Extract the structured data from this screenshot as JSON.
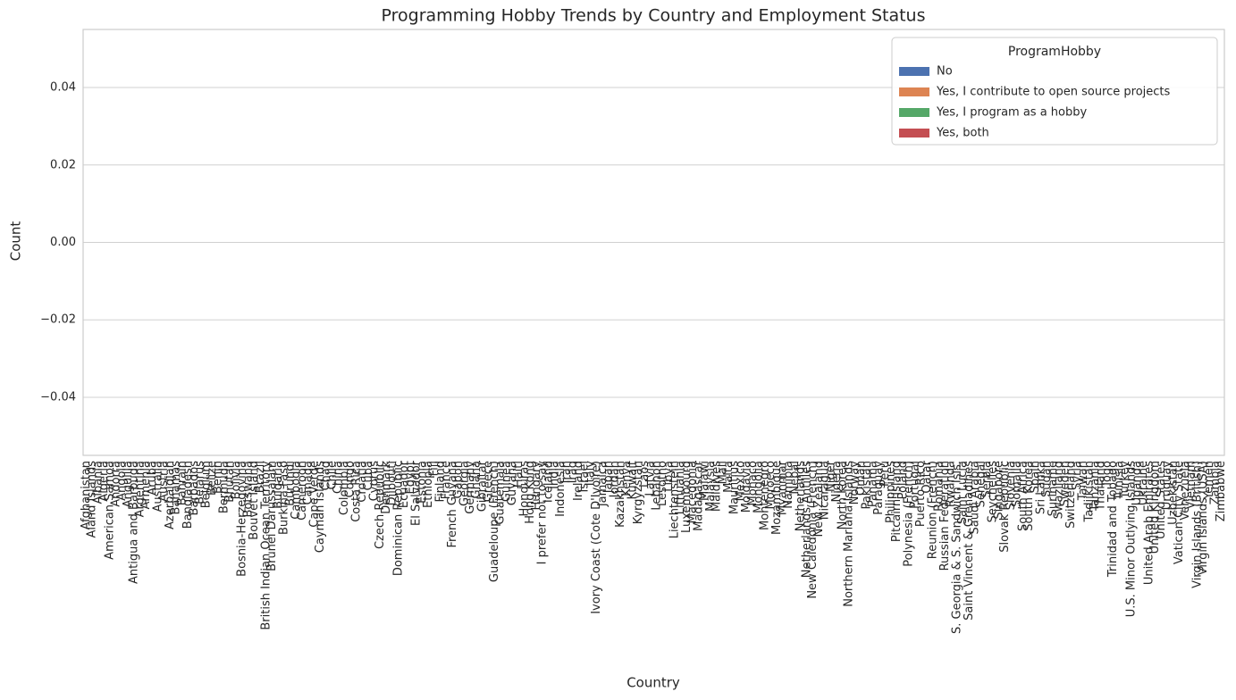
{
  "chart_data": {
    "type": "bar",
    "title": "Programming Hobby Trends by Country and Employment Status",
    "xlabel": "Country",
    "ylabel": "Count",
    "categories": [
      "Afghanistan",
      "Aland Islands",
      "Albania",
      "Algeria",
      "American Samoa",
      "Andorra",
      "Angola",
      "Anguilla",
      "Antigua and Barbuda",
      "Argentina",
      "Armenia",
      "Aruba",
      "Australia",
      "Austria",
      "Azerbaidjan",
      "Bahamas",
      "Bahrain",
      "Bangladesh",
      "Barbados",
      "Belarus",
      "Belgium",
      "Belize",
      "Benin",
      "Bermuda",
      "Bhutan",
      "Bolivia",
      "Bosnia-Herzegovina",
      "Botswana",
      "Bouvet Island",
      "Brazil",
      "British Indian Ocean Territory",
      "Brunei Darussalam",
      "Bulgaria",
      "Burkina Faso",
      "Burundi",
      "Cambodia",
      "Cameroon",
      "Canada",
      "Cape Verde",
      "Cayman Islands",
      "Chad",
      "Chile",
      "China",
      "Colombia",
      "Congo",
      "Costa Rica",
      "Croatia",
      "Cuba",
      "Cyprus",
      "Czech Republic",
      "Denmark",
      "Djibouti",
      "Dominican Republic",
      "Ecuador",
      "Egypt",
      "El Salvador",
      "Estonia",
      "Ethiopia",
      "Fiji",
      "Finland",
      "France",
      "French Guyana",
      "Gabon",
      "Georgia",
      "Germany",
      "Ghana",
      "Gibraltar",
      "Greece",
      "Guadeloupe (French)",
      "Guatemala",
      "Guinea",
      "Guyana",
      "Haiti",
      "Honduras",
      "Hong Kong",
      "Hungary",
      "I prefer not to say",
      "Iceland",
      "India",
      "Indonesia",
      "Iran",
      "Iraq",
      "Ireland",
      "Israel",
      "Italy",
      "Ivory Coast (Cote D'Ivoire)",
      "Jamaica",
      "Japan",
      "Jordan",
      "Kazakhstan",
      "Kenya",
      "Kuwait",
      "Kyrgyzstan",
      "Laos",
      "Latvia",
      "Lebanon",
      "Lesotho",
      "Libya",
      "Liechtenstein",
      "Lithuania",
      "Luxembourg",
      "Macedonia",
      "Madagascar",
      "Malawi",
      "Malaysia",
      "Maldives",
      "Mali",
      "Malta",
      "Mauritius",
      "Mexico",
      "Moldavia",
      "Monaco",
      "Mongolia",
      "Montenegro",
      "Morocco",
      "Mozambique",
      "Myanmar",
      "Namibia",
      "Nepal",
      "Netherlands",
      "Netherlands Antilles",
      "New Caledonia (French)",
      "New Zealand",
      "Nicaragua",
      "Niger",
      "Nigeria",
      "North Korea",
      "Northern Mariana Islands",
      "Norway",
      "Oman",
      "Pakistan",
      "Panama",
      "Paraguay",
      "Peru",
      "Philippines",
      "Pitcairn Island",
      "Poland",
      "Polynesia (French)",
      "Portugal",
      "Puerto Rico",
      "Qatar",
      "Reunion (French)",
      "Romania",
      "Russian Federation",
      "Rwanda",
      "S. Georgia & S. Sandwich Isls.",
      "Saint Lucia",
      "Saint Vincent & Grenadines",
      "Saudi Arabia",
      "Senegal",
      "Serbia",
      "Seychelles",
      "Singapore",
      "Slovak Republic",
      "Slovenia",
      "Somalia",
      "South Africa",
      "South Korea",
      "Spain",
      "Sri Lanka",
      "Sudan",
      "Suriname",
      "Swaziland",
      "Sweden",
      "Switzerland",
      "Syria",
      "Taiwan",
      "Tadjikistan",
      "Tanzania",
      "Thailand",
      "Togo",
      "Trinidad and Tobago",
      "Tunisia",
      "Turkey",
      "U.S. Minor Outlying Islands",
      "Uganda",
      "Ukraine",
      "United Arab Emirates",
      "United Kingdom",
      "United States",
      "Uruguay",
      "Uzbekistan",
      "Vatican City State",
      "Venezuela",
      "Vietnam",
      "Virgin Islands (British)",
      "Virgin Islands (USA)",
      "Yemen",
      "Zambia",
      "Zimbabwe"
    ],
    "legend_title": "ProgramHobby",
    "series": [
      {
        "name": "No",
        "color": "#4c72b0",
        "values": [
          0,
          0,
          0,
          0,
          0,
          0,
          0,
          0,
          0,
          0,
          0,
          0,
          0,
          0,
          0,
          0,
          0,
          0,
          0,
          0,
          0,
          0,
          0,
          0,
          0,
          0,
          0,
          0,
          0,
          0,
          0,
          0,
          0,
          0,
          0,
          0,
          0,
          0,
          0,
          0,
          0,
          0,
          0,
          0,
          0,
          0,
          0,
          0,
          0,
          0,
          0,
          0,
          0,
          0,
          0,
          0,
          0,
          0,
          0,
          0,
          0,
          0,
          0,
          0,
          0,
          0,
          0,
          0,
          0,
          0,
          0,
          0,
          0,
          0,
          0,
          0,
          0,
          0,
          0,
          0,
          0,
          0,
          0,
          0,
          0,
          0,
          0,
          0,
          0,
          0,
          0,
          0,
          0,
          0,
          0,
          0,
          0,
          0,
          0,
          0,
          0,
          0,
          0,
          0,
          0,
          0,
          0,
          0,
          0,
          0,
          0,
          0,
          0,
          0,
          0,
          0,
          0,
          0,
          0,
          0,
          0,
          0,
          0,
          0,
          0,
          0,
          0,
          0,
          0,
          0,
          0,
          0,
          0,
          0,
          0,
          0,
          0,
          0,
          0,
          0,
          0,
          0,
          0,
          0,
          0,
          0,
          0,
          0,
          0,
          0,
          0,
          0,
          0,
          0,
          0,
          0,
          0,
          0,
          0,
          0,
          0,
          0,
          0,
          0,
          0,
          0,
          0,
          0,
          0,
          0,
          0,
          0,
          0,
          0,
          0,
          0,
          0,
          0,
          0,
          0,
          0,
          0,
          0,
          0,
          0,
          0,
          0,
          0,
          0,
          0
        ]
      },
      {
        "name": "Yes, I contribute to open source projects",
        "color": "#dd8452",
        "values": [
          0,
          0,
          0,
          0,
          0,
          0,
          0,
          0,
          0,
          0,
          0,
          0,
          0,
          0,
          0,
          0,
          0,
          0,
          0,
          0,
          0,
          0,
          0,
          0,
          0,
          0,
          0,
          0,
          0,
          0,
          0,
          0,
          0,
          0,
          0,
          0,
          0,
          0,
          0,
          0,
          0,
          0,
          0,
          0,
          0,
          0,
          0,
          0,
          0,
          0,
          0,
          0,
          0,
          0,
          0,
          0,
          0,
          0,
          0,
          0,
          0,
          0,
          0,
          0,
          0,
          0,
          0,
          0,
          0,
          0,
          0,
          0,
          0,
          0,
          0,
          0,
          0,
          0,
          0,
          0,
          0,
          0,
          0,
          0,
          0,
          0,
          0,
          0,
          0,
          0,
          0,
          0,
          0,
          0,
          0,
          0,
          0,
          0,
          0,
          0,
          0,
          0,
          0,
          0,
          0,
          0,
          0,
          0,
          0,
          0,
          0,
          0,
          0,
          0,
          0,
          0,
          0,
          0,
          0,
          0,
          0,
          0,
          0,
          0,
          0,
          0,
          0,
          0,
          0,
          0,
          0,
          0,
          0,
          0,
          0,
          0,
          0,
          0,
          0,
          0,
          0,
          0,
          0,
          0,
          0,
          0,
          0,
          0,
          0,
          0,
          0,
          0,
          0,
          0,
          0,
          0,
          0,
          0,
          0,
          0,
          0,
          0,
          0,
          0,
          0,
          0,
          0,
          0,
          0,
          0,
          0,
          0,
          0,
          0,
          0,
          0,
          0,
          0,
          0,
          0,
          0,
          0,
          0,
          0,
          0,
          0,
          0,
          0,
          0,
          0
        ]
      },
      {
        "name": "Yes, I program as a hobby",
        "color": "#55a868",
        "values": [
          0,
          0,
          0,
          0,
          0,
          0,
          0,
          0,
          0,
          0,
          0,
          0,
          0,
          0,
          0,
          0,
          0,
          0,
          0,
          0,
          0,
          0,
          0,
          0,
          0,
          0,
          0,
          0,
          0,
          0,
          0,
          0,
          0,
          0,
          0,
          0,
          0,
          0,
          0,
          0,
          0,
          0,
          0,
          0,
          0,
          0,
          0,
          0,
          0,
          0,
          0,
          0,
          0,
          0,
          0,
          0,
          0,
          0,
          0,
          0,
          0,
          0,
          0,
          0,
          0,
          0,
          0,
          0,
          0,
          0,
          0,
          0,
          0,
          0,
          0,
          0,
          0,
          0,
          0,
          0,
          0,
          0,
          0,
          0,
          0,
          0,
          0,
          0,
          0,
          0,
          0,
          0,
          0,
          0,
          0,
          0,
          0,
          0,
          0,
          0,
          0,
          0,
          0,
          0,
          0,
          0,
          0,
          0,
          0,
          0,
          0,
          0,
          0,
          0,
          0,
          0,
          0,
          0,
          0,
          0,
          0,
          0,
          0,
          0,
          0,
          0,
          0,
          0,
          0,
          0,
          0,
          0,
          0,
          0,
          0,
          0,
          0,
          0,
          0,
          0,
          0,
          0,
          0,
          0,
          0,
          0,
          0,
          0,
          0,
          0,
          0,
          0,
          0,
          0,
          0,
          0,
          0,
          0,
          0,
          0,
          0,
          0,
          0,
          0,
          0,
          0,
          0,
          0,
          0,
          0,
          0,
          0,
          0,
          0,
          0,
          0,
          0,
          0,
          0,
          0,
          0,
          0,
          0,
          0,
          0,
          0,
          0,
          0,
          0,
          0
        ]
      },
      {
        "name": "Yes, both",
        "color": "#c44e52",
        "values": [
          0,
          0,
          0,
          0,
          0,
          0,
          0,
          0,
          0,
          0,
          0,
          0,
          0,
          0,
          0,
          0,
          0,
          0,
          0,
          0,
          0,
          0,
          0,
          0,
          0,
          0,
          0,
          0,
          0,
          0,
          0,
          0,
          0,
          0,
          0,
          0,
          0,
          0,
          0,
          0,
          0,
          0,
          0,
          0,
          0,
          0,
          0,
          0,
          0,
          0,
          0,
          0,
          0,
          0,
          0,
          0,
          0,
          0,
          0,
          0,
          0,
          0,
          0,
          0,
          0,
          0,
          0,
          0,
          0,
          0,
          0,
          0,
          0,
          0,
          0,
          0,
          0,
          0,
          0,
          0,
          0,
          0,
          0,
          0,
          0,
          0,
          0,
          0,
          0,
          0,
          0,
          0,
          0,
          0,
          0,
          0,
          0,
          0,
          0,
          0,
          0,
          0,
          0,
          0,
          0,
          0,
          0,
          0,
          0,
          0,
          0,
          0,
          0,
          0,
          0,
          0,
          0,
          0,
          0,
          0,
          0,
          0,
          0,
          0,
          0,
          0,
          0,
          0,
          0,
          0,
          0,
          0,
          0,
          0,
          0,
          0,
          0,
          0,
          0,
          0,
          0,
          0,
          0,
          0,
          0,
          0,
          0,
          0,
          0,
          0,
          0,
          0,
          0,
          0,
          0,
          0,
          0,
          0,
          0,
          0,
          0,
          0,
          0,
          0,
          0,
          0,
          0,
          0,
          0,
          0,
          0,
          0,
          0,
          0,
          0,
          0,
          0,
          0,
          0,
          0,
          0,
          0,
          0,
          0,
          0,
          0,
          0,
          0,
          0,
          0
        ]
      }
    ],
    "ylim": [
      -0.055,
      0.055
    ],
    "yticks": [
      {
        "value": -0.04,
        "label": "−0.04"
      },
      {
        "value": -0.02,
        "label": "−0.02"
      },
      {
        "value": 0,
        "label": "0.00"
      },
      {
        "value": 0.02,
        "label": "0.02"
      },
      {
        "value": 0.04,
        "label": "0.04"
      }
    ],
    "grid": true,
    "legend_loc": "upper right"
  }
}
